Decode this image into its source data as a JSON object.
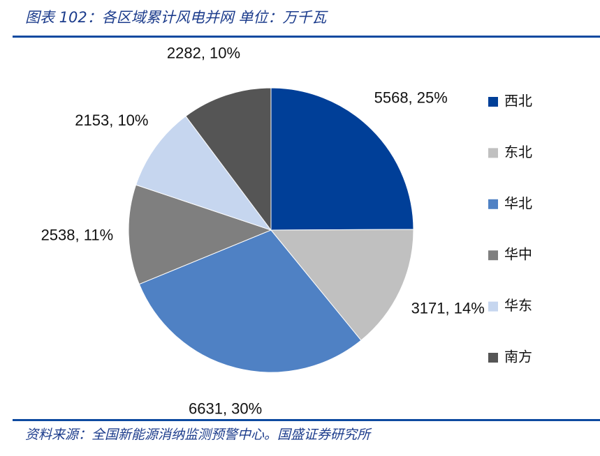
{
  "chart_data": {
    "type": "pie",
    "title": "图表 102：各区域累计风电并网 单位：万千瓦",
    "categories": [
      "西北",
      "东北",
      "华北",
      "华中",
      "华东",
      "南方"
    ],
    "values": [
      5568,
      3171,
      6631,
      2538,
      2153,
      2282
    ],
    "value_labels": [
      "5568, 25%",
      "3171, 14%",
      "6631, 30%",
      "2538, 11%",
      "2153, 10%",
      "2282, 10%"
    ],
    "colors": [
      "#003f98",
      "#c0c0c0",
      "#4f81c4",
      "#7f7f7f",
      "#c6d6ef",
      "#555555"
    ],
    "legend": "right",
    "source": "资料来源：全国新能源消纳监测预警中心。国盛证券研究所"
  }
}
